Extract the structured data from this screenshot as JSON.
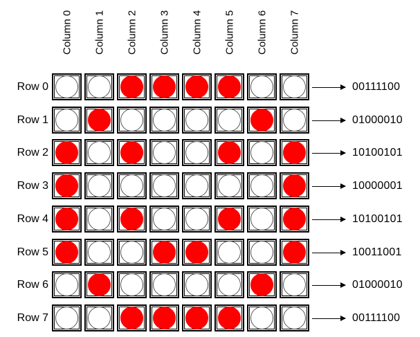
{
  "columns": [
    "Column 0",
    "Column 1",
    "Column 2",
    "Column 3",
    "Column 4",
    "Column 5",
    "Column 6",
    "Column 7"
  ],
  "rows": [
    {
      "label": "Row 0",
      "bits": "00111100"
    },
    {
      "label": "Row 1",
      "bits": "01000010"
    },
    {
      "label": "Row 2",
      "bits": "10100101"
    },
    {
      "label": "Row 3",
      "bits": "10000001"
    },
    {
      "label": "Row 4",
      "bits": "10100101"
    },
    {
      "label": "Row 5",
      "bits": "10011001"
    },
    {
      "label": "Row 6",
      "bits": "01000010"
    },
    {
      "label": "Row 7",
      "bits": "00111100"
    }
  ],
  "colors": {
    "on": "#ff0000",
    "off": "#ffffff",
    "grid": "#000000"
  }
}
